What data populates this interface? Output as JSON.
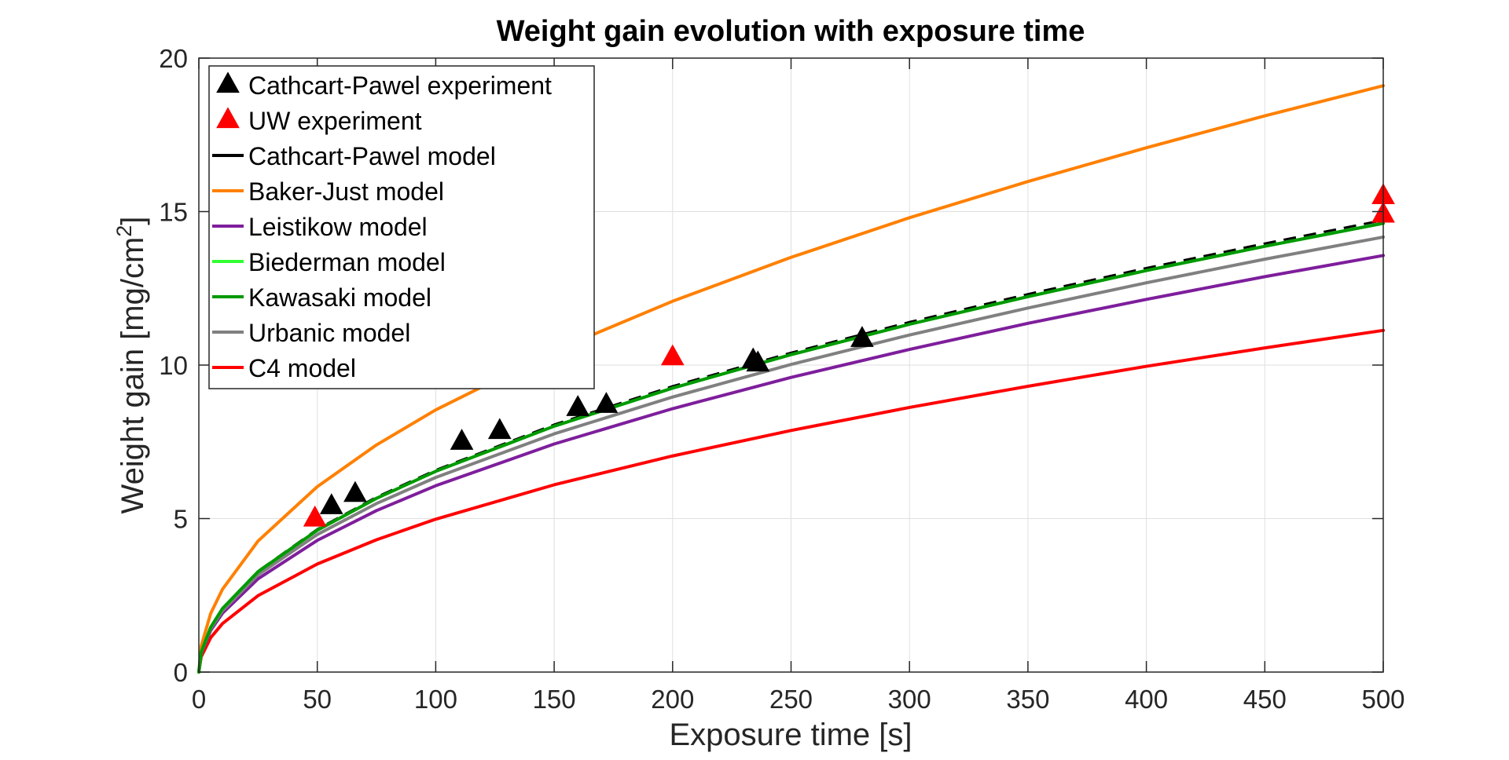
{
  "chart_data": {
    "type": "line",
    "title": "Weight gain evolution with exposure time",
    "xlabel": "Exposure time [s]",
    "ylabel_main": "Weight gain [mg/cm",
    "ylabel_sup": "2",
    "ylabel_close": "]",
    "xlim": [
      0,
      500
    ],
    "ylim": [
      0,
      20
    ],
    "xticks": [
      0,
      50,
      100,
      150,
      200,
      250,
      300,
      350,
      400,
      450,
      500
    ],
    "yticks": [
      0,
      5,
      10,
      15,
      20
    ],
    "grid": true,
    "legend_position": "top-left",
    "series": [
      {
        "name": "Cathcart-Pawel experiment",
        "kind": "marker",
        "color": "#000000",
        "points": [
          [
            56,
            5.4
          ],
          [
            66,
            5.8
          ],
          [
            111,
            7.5
          ],
          [
            127,
            7.85
          ],
          [
            160,
            8.6
          ],
          [
            172,
            8.7
          ],
          [
            234,
            10.15
          ],
          [
            236,
            10.05
          ],
          [
            280,
            10.85
          ]
        ]
      },
      {
        "name": "UW experiment",
        "kind": "marker",
        "color": "#ff0000",
        "points": [
          [
            49,
            5.0
          ],
          [
            200,
            10.25
          ],
          [
            500,
            15.5
          ],
          [
            500,
            14.9
          ]
        ]
      },
      {
        "name": "Cathcart-Pawel model",
        "kind": "line",
        "color": "#000000",
        "dashed": true,
        "x": [
          0,
          1,
          5,
          10,
          25,
          50,
          75,
          100,
          150,
          200,
          250,
          300,
          350,
          400,
          450,
          500
        ],
        "y": [
          0,
          0.66,
          1.47,
          2.08,
          3.29,
          4.65,
          5.7,
          6.58,
          8.06,
          9.31,
          10.4,
          11.4,
          12.31,
          13.16,
          13.96,
          14.72
        ]
      },
      {
        "name": "Baker-Just model",
        "kind": "line",
        "color": "#ff8000",
        "x": [
          0,
          1,
          5,
          10,
          25,
          50,
          75,
          100,
          150,
          200,
          250,
          300,
          350,
          400,
          450,
          500
        ],
        "y": [
          0,
          0.85,
          1.91,
          2.7,
          4.27,
          6.04,
          7.4,
          8.54,
          10.46,
          12.08,
          13.51,
          14.8,
          15.98,
          17.08,
          18.12,
          19.1
        ]
      },
      {
        "name": "Leistikow model",
        "kind": "line",
        "color": "#7e1e9c",
        "x": [
          0,
          1,
          5,
          10,
          25,
          50,
          75,
          100,
          150,
          200,
          250,
          300,
          350,
          400,
          450,
          500
        ],
        "y": [
          0,
          0.61,
          1.36,
          1.92,
          3.04,
          4.29,
          5.26,
          6.07,
          7.43,
          8.58,
          9.6,
          10.51,
          11.36,
          12.14,
          12.88,
          13.57
        ]
      },
      {
        "name": "Biederman model",
        "kind": "line",
        "color": "#33ff33",
        "x": [
          0,
          1,
          5,
          10,
          25,
          50,
          75,
          100,
          150,
          200,
          250,
          300,
          350,
          400,
          450,
          500
        ],
        "y": [
          0,
          0.65,
          1.46,
          2.07,
          3.27,
          4.62,
          5.66,
          6.54,
          8.01,
          9.25,
          10.34,
          11.33,
          12.23,
          13.08,
          13.87,
          14.62
        ]
      },
      {
        "name": "Kawasaki model",
        "kind": "line",
        "color": "#009900",
        "x": [
          0,
          1,
          5,
          10,
          25,
          50,
          75,
          100,
          150,
          200,
          250,
          300,
          350,
          400,
          450,
          500
        ],
        "y": [
          0,
          0.65,
          1.46,
          2.07,
          3.27,
          4.62,
          5.66,
          6.54,
          8.01,
          9.25,
          10.34,
          11.33,
          12.23,
          13.08,
          13.87,
          14.62
        ]
      },
      {
        "name": "Urbanic model",
        "kind": "line",
        "color": "#808080",
        "x": [
          0,
          1,
          5,
          10,
          25,
          50,
          75,
          100,
          150,
          200,
          250,
          300,
          350,
          400,
          450,
          500
        ],
        "y": [
          0,
          0.63,
          1.42,
          2.0,
          3.17,
          4.48,
          5.49,
          6.34,
          7.76,
          8.96,
          10.02,
          10.98,
          11.86,
          12.68,
          13.45,
          14.17
        ]
      },
      {
        "name": "C4 model",
        "kind": "line",
        "color": "#ff0000",
        "x": [
          0,
          1,
          5,
          10,
          25,
          50,
          75,
          100,
          150,
          200,
          250,
          300,
          350,
          400,
          450,
          500
        ],
        "y": [
          0,
          0.5,
          1.12,
          1.58,
          2.49,
          3.52,
          4.31,
          4.98,
          6.1,
          7.04,
          7.87,
          8.62,
          9.31,
          9.96,
          10.56,
          11.13
        ]
      }
    ]
  }
}
